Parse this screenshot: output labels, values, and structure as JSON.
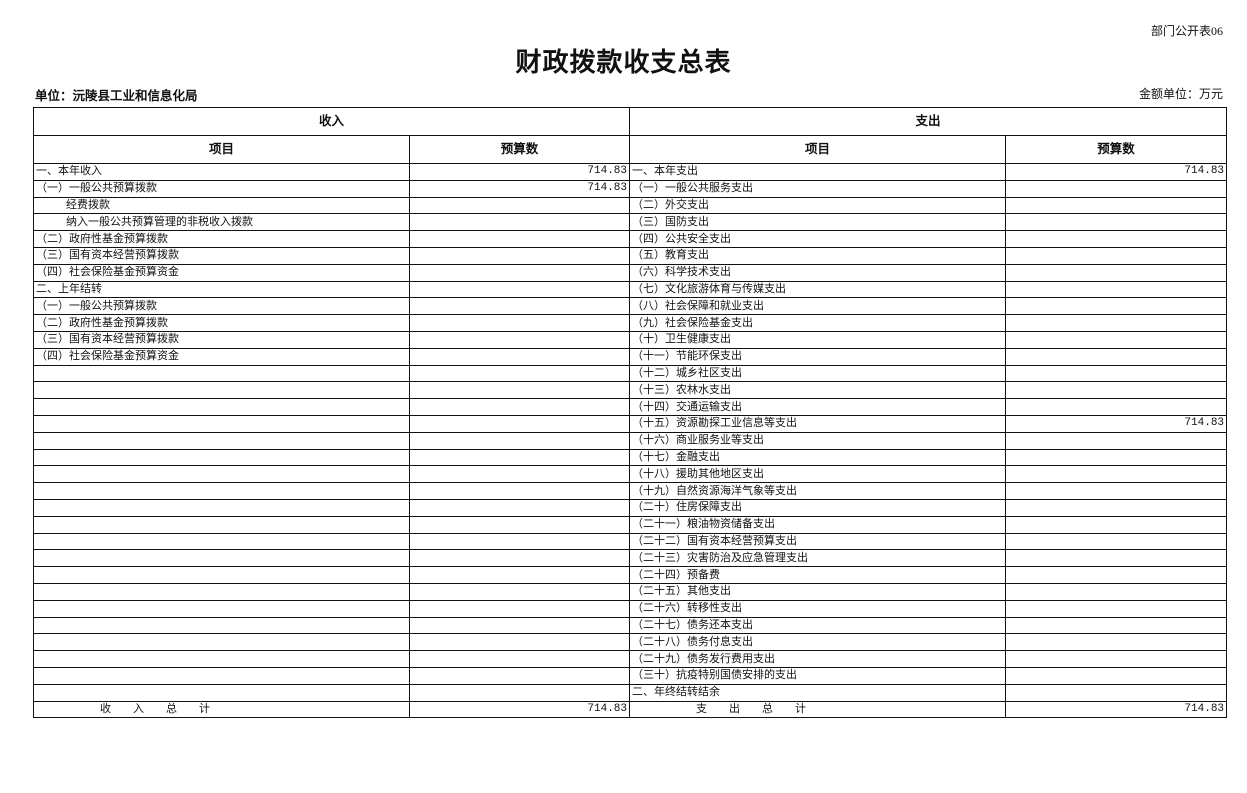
{
  "form_code": "部门公开表06",
  "title": "财政拨款收支总表",
  "unit_label": "单位：沅陵县工业和信息化局",
  "money_unit": "金额单位：万元",
  "headers": {
    "income": "收入",
    "expense": "支出",
    "item": "项目",
    "budget": "预算数"
  },
  "income_rows": [
    {
      "label": "一、本年收入",
      "value": "714.83"
    },
    {
      "label": "（一）一般公共预算拨款",
      "value": "714.83"
    },
    {
      "label": "经费拨款",
      "value": "",
      "indent": true
    },
    {
      "label": "纳入一般公共预算管理的非税收入拨款",
      "value": "",
      "indent": true
    },
    {
      "label": "（二）政府性基金预算拨款",
      "value": ""
    },
    {
      "label": "（三）国有资本经营预算拨款",
      "value": ""
    },
    {
      "label": "（四）社会保险基金预算资金",
      "value": ""
    },
    {
      "label": "二、上年结转",
      "value": ""
    },
    {
      "label": "（一）一般公共预算拨款",
      "value": ""
    },
    {
      "label": "（二）政府性基金预算拨款",
      "value": ""
    },
    {
      "label": "（三）国有资本经营预算拨款",
      "value": ""
    },
    {
      "label": "（四）社会保险基金预算资金",
      "value": ""
    }
  ],
  "expense_rows": [
    {
      "label": "一、本年支出",
      "value": "714.83"
    },
    {
      "label": "（一）一般公共服务支出",
      "value": ""
    },
    {
      "label": "（二）外交支出",
      "value": ""
    },
    {
      "label": "（三）国防支出",
      "value": ""
    },
    {
      "label": "（四）公共安全支出",
      "value": ""
    },
    {
      "label": "（五）教育支出",
      "value": ""
    },
    {
      "label": "（六）科学技术支出",
      "value": ""
    },
    {
      "label": "（七）文化旅游体育与传媒支出",
      "value": ""
    },
    {
      "label": "（八）社会保障和就业支出",
      "value": ""
    },
    {
      "label": "（九）社会保险基金支出",
      "value": ""
    },
    {
      "label": "（十）卫生健康支出",
      "value": ""
    },
    {
      "label": "（十一）节能环保支出",
      "value": ""
    },
    {
      "label": "（十二）城乡社区支出",
      "value": ""
    },
    {
      "label": "（十三）农林水支出",
      "value": ""
    },
    {
      "label": "（十四）交通运输支出",
      "value": ""
    },
    {
      "label": "（十五）资源勘探工业信息等支出",
      "value": "714.83"
    },
    {
      "label": "（十六）商业服务业等支出",
      "value": ""
    },
    {
      "label": "（十七）金融支出",
      "value": ""
    },
    {
      "label": "（十八）援助其他地区支出",
      "value": ""
    },
    {
      "label": "（十九）自然资源海洋气象等支出",
      "value": ""
    },
    {
      "label": "（二十）住房保障支出",
      "value": ""
    },
    {
      "label": "（二十一）粮油物资储备支出",
      "value": ""
    },
    {
      "label": "（二十二）国有资本经营预算支出",
      "value": ""
    },
    {
      "label": "（二十三）灾害防治及应急管理支出",
      "value": ""
    },
    {
      "label": "（二十四）预备费",
      "value": ""
    },
    {
      "label": "（二十五）其他支出",
      "value": ""
    },
    {
      "label": "（二十六）转移性支出",
      "value": ""
    },
    {
      "label": "（二十七）债务还本支出",
      "value": ""
    },
    {
      "label": "（二十八）债务付息支出",
      "value": ""
    },
    {
      "label": "（二十九）债务发行费用支出",
      "value": ""
    },
    {
      "label": "（三十）抗疫特别国债安排的支出",
      "value": ""
    },
    {
      "label": "二、年终结转结余",
      "value": ""
    }
  ],
  "totals": {
    "income_label": "收入总计",
    "income_value": "714.83",
    "expense_label": "支出总计",
    "expense_value": "714.83"
  }
}
